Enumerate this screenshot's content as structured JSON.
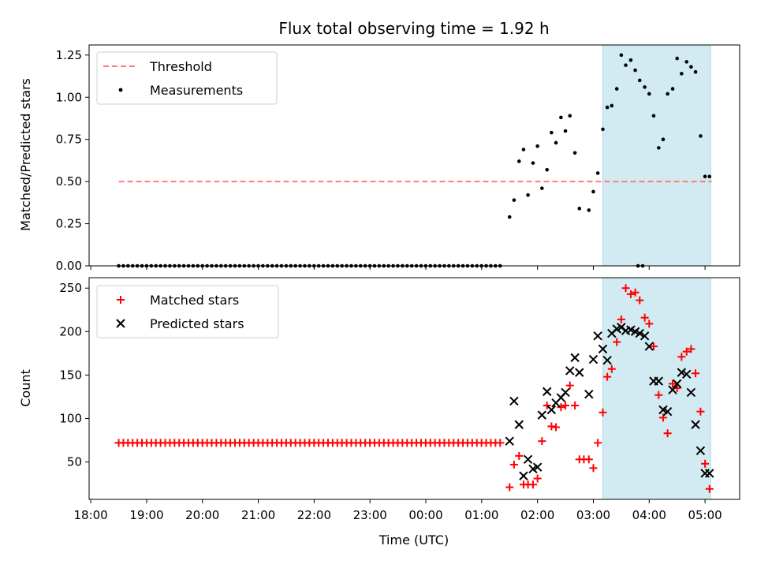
{
  "title": "Flux total observing time = 1.92 h",
  "xlabel": "Time (UTC)",
  "xticks": [
    {
      "t": 18.0,
      "label": "18:00"
    },
    {
      "t": 19.0,
      "label": "19:00"
    },
    {
      "t": 20.0,
      "label": "20:00"
    },
    {
      "t": 21.0,
      "label": "21:00"
    },
    {
      "t": 22.0,
      "label": "22:00"
    },
    {
      "t": 23.0,
      "label": "23:00"
    },
    {
      "t": 24.0,
      "label": "00:00"
    },
    {
      "t": 25.0,
      "label": "01:00"
    },
    {
      "t": 26.0,
      "label": "02:00"
    },
    {
      "t": 27.0,
      "label": "03:00"
    },
    {
      "t": 28.0,
      "label": "04:00"
    },
    {
      "t": 29.0,
      "label": "05:00"
    }
  ],
  "colors": {
    "threshold": "#ff7b7b",
    "measurements": "#000000",
    "matched": "#ff0000",
    "predicted": "#000000",
    "shade": "#add8e6"
  },
  "chart_data": [
    {
      "type": "scatter",
      "ylabel": "Matched/Predicted stars",
      "xlim": [
        17.97,
        29.62
      ],
      "ylim": [
        0,
        1.31
      ],
      "yticks": [
        {
          "v": 0.0,
          "label": "0.00"
        },
        {
          "v": 0.25,
          "label": "0.25"
        },
        {
          "v": 0.5,
          "label": "0.50"
        },
        {
          "v": 0.75,
          "label": "0.75"
        },
        {
          "v": 1.0,
          "label": "1.00"
        },
        {
          "v": 1.25,
          "label": "1.25"
        }
      ],
      "grid": false,
      "legend_position": "top-left",
      "shaded_region": [
        27.17,
        29.1
      ],
      "threshold": {
        "name": "Threshold",
        "y": 0.5,
        "x_range": [
          18.5,
          29.12
        ]
      },
      "legend": [
        "Threshold",
        "Measurements"
      ],
      "zero_segments": [
        [
          18.5,
          25.4
        ],
        [
          27.8,
          27.92
        ]
      ],
      "measurements": {
        "name": "Measurements",
        "x": [
          25.5,
          25.58,
          25.67,
          25.75,
          25.83,
          25.92,
          26.0,
          26.08,
          26.17,
          26.25,
          26.33,
          26.42,
          26.5,
          26.58,
          26.67,
          26.75,
          26.92,
          27.0,
          27.08,
          27.17,
          27.25,
          27.33,
          27.42,
          27.5,
          27.58,
          27.67,
          27.75,
          27.83,
          27.92,
          28.0,
          28.08,
          28.17,
          28.25,
          28.33,
          28.42,
          28.5,
          28.58,
          28.67,
          28.75,
          28.83,
          28.92,
          29.0,
          29.08
        ],
        "y": [
          0.29,
          0.39,
          0.62,
          0.69,
          0.42,
          0.61,
          0.71,
          0.46,
          0.57,
          0.79,
          0.73,
          0.88,
          0.8,
          0.89,
          0.67,
          0.34,
          0.33,
          0.44,
          0.55,
          0.81,
          0.94,
          0.95,
          1.05,
          1.25,
          1.19,
          1.22,
          1.16,
          1.1,
          1.06,
          1.02,
          0.89,
          0.7,
          0.75,
          1.02,
          1.05,
          1.23,
          1.14,
          1.21,
          1.18,
          1.15,
          0.77,
          0.53,
          0.53
        ]
      }
    },
    {
      "type": "scatter",
      "ylabel": "Count",
      "xlim": [
        17.97,
        29.62
      ],
      "ylim": [
        7,
        262
      ],
      "yticks": [
        {
          "v": 50,
          "label": "50"
        },
        {
          "v": 100,
          "label": "100"
        },
        {
          "v": 150,
          "label": "150"
        },
        {
          "v": 200,
          "label": "200"
        },
        {
          "v": 250,
          "label": "250"
        }
      ],
      "grid": false,
      "legend_position": "top-left",
      "shaded_region": [
        27.17,
        29.1
      ],
      "legend": [
        "Matched stars",
        "Predicted stars"
      ],
      "baseline": {
        "y": 72,
        "x_range": [
          18.5,
          25.4
        ],
        "step": 0.0833
      },
      "series": [
        {
          "name": "Matched stars",
          "marker": "plus",
          "x": [
            25.5,
            25.58,
            25.67,
            25.75,
            25.83,
            25.92,
            26.0,
            26.08,
            26.17,
            26.25,
            26.33,
            26.42,
            26.5,
            26.58,
            26.67,
            26.75,
            26.83,
            26.92,
            27.0,
            27.08,
            27.17,
            27.25,
            27.33,
            27.42,
            27.5,
            27.58,
            27.67,
            27.75,
            27.83,
            27.92,
            28.0,
            28.08,
            28.17,
            28.25,
            28.33,
            28.42,
            28.5,
            28.58,
            28.67,
            28.75,
            28.83,
            28.92,
            29.0,
            29.08
          ],
          "y": [
            21,
            47,
            57,
            24,
            24,
            24,
            31,
            74,
            115,
            91,
            90,
            113,
            115,
            138,
            115,
            53,
            53,
            53,
            43,
            72,
            107,
            148,
            157,
            188,
            214,
            250,
            243,
            245,
            236,
            216,
            209,
            183,
            127,
            101,
            83,
            140,
            135,
            171,
            177,
            180,
            152,
            108,
            48,
            19
          ]
        },
        {
          "name": "Predicted stars",
          "marker": "x",
          "x": [
            25.5,
            25.58,
            25.67,
            25.75,
            25.83,
            25.92,
            26.0,
            26.08,
            26.17,
            26.25,
            26.33,
            26.42,
            26.5,
            26.58,
            26.67,
            26.75,
            26.92,
            27.0,
            27.08,
            27.17,
            27.25,
            27.33,
            27.42,
            27.5,
            27.58,
            27.67,
            27.75,
            27.83,
            27.92,
            28.0,
            28.08,
            28.17,
            28.25,
            28.33,
            28.42,
            28.5,
            28.58,
            28.67,
            28.75,
            28.83,
            28.92,
            29.0,
            29.08
          ],
          "y": [
            74,
            120,
            93,
            34,
            53,
            42,
            44,
            104,
            131,
            110,
            118,
            124,
            130,
            155,
            170,
            153,
            128,
            168,
            195,
            180,
            167,
            198,
            203,
            205,
            201,
            202,
            200,
            198,
            195,
            183,
            143,
            143,
            110,
            108,
            133,
            140,
            153,
            151,
            130,
            93,
            63,
            37,
            37
          ]
        }
      ]
    }
  ]
}
